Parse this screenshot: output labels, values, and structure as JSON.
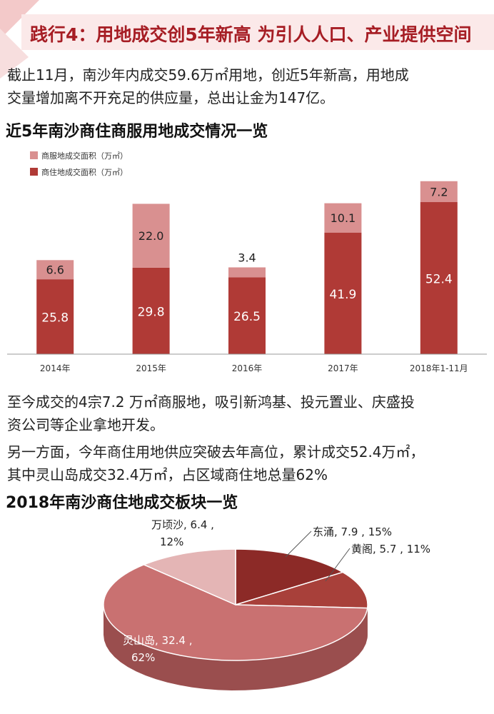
{
  "header": {
    "title": "践行4：用地成交创5年新高  为引人人口、产业提供空间"
  },
  "intro": {
    "line1": "截止11月，南沙年内成交59.6万㎡用地，创近5年新高，用地成",
    "line2": "交量增加离不开充足的供应量，总出让金为147亿。"
  },
  "bar_section_title": "近5年南沙商住商服用地成交情况一览",
  "para2": {
    "line1": "至今成交的4宗7.2 万㎡商服地，吸引新鸿基、投元置业、庆盛投",
    "line2": "资公司等企业拿地开发。",
    "line3": "另一方面，今年商住用地供应突破去年高位，累计成交52.4万㎡，",
    "line4": "其中灵山岛成交32.4万㎡，占区域商住地总量62%"
  },
  "pie_section_title": "2018年南沙商住地成交板块一览",
  "colors": {
    "accent": "#a61d24",
    "residential": "#b03a36",
    "commercial": "#d99090"
  },
  "chart_data": [
    {
      "type": "bar",
      "stacked": true,
      "categories": [
        "2014年",
        "2015年",
        "2016年",
        "2017年",
        "2018年1-11月"
      ],
      "series": [
        {
          "name": "商住地成交面积（万㎡）",
          "values": [
            25.8,
            29.8,
            26.5,
            41.9,
            52.4
          ],
          "labels": [
            "25.8",
            "29.8",
            "26.5",
            "41.9",
            "52.4"
          ]
        },
        {
          "name": "商服地成交面积（万㎡）",
          "values": [
            6.6,
            22.0,
            3.4,
            10.1,
            7.2
          ],
          "labels": [
            "6.6",
            "22.0",
            "3.4",
            "10.1",
            "7.2"
          ]
        }
      ],
      "legend_position": "top-left",
      "ylim": [
        0,
        62
      ],
      "grid": false
    },
    {
      "type": "pie",
      "slices": [
        {
          "name": "东涌",
          "value": 7.9,
          "percent": 15,
          "label_line1": "东涌, 7.9 , 15%",
          "label_line2": ""
        },
        {
          "name": "黄阁",
          "value": 5.7,
          "percent": 11,
          "label_line1": "黄阁, 5.7 , 11%",
          "label_line2": ""
        },
        {
          "name": "灵山岛",
          "value": 32.4,
          "percent": 62,
          "label_line1": "灵山岛, 32.4 ,",
          "label_line2": "62%"
        },
        {
          "name": "万顷沙",
          "value": 6.4,
          "percent": 12,
          "label_line1": "万顷沙, 6.4 ,",
          "label_line2": "12%"
        }
      ],
      "legend_position": "none"
    }
  ]
}
